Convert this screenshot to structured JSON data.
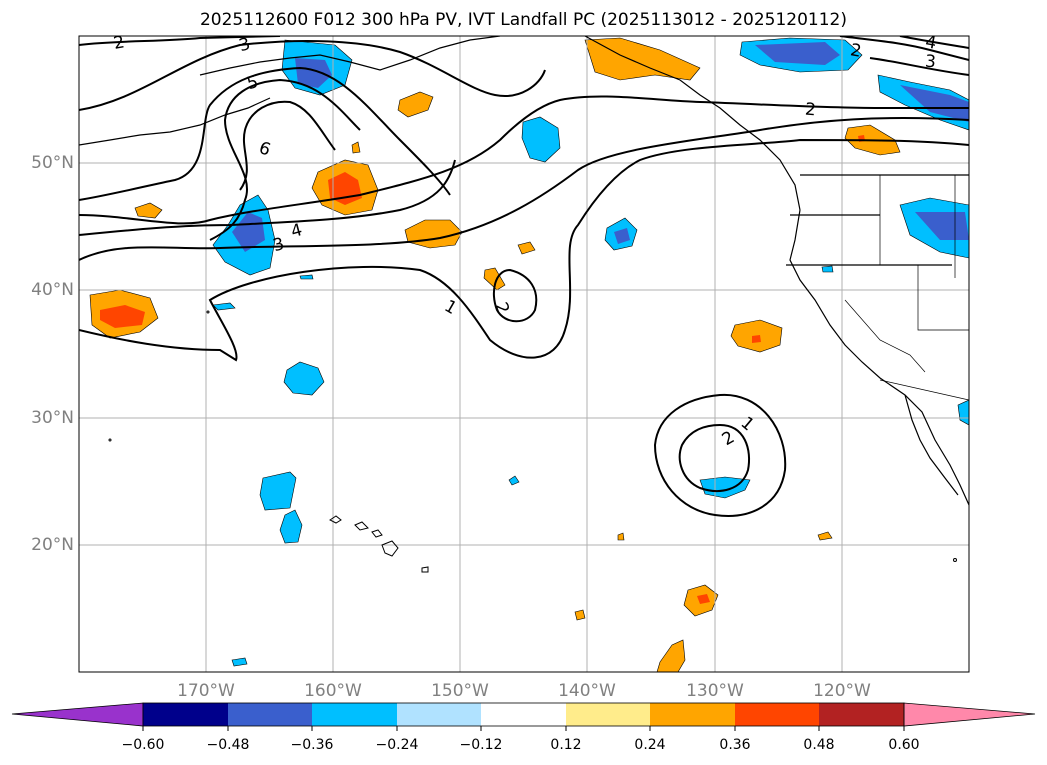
{
  "title": "2025112600 F012 300 hPa PV, IVT Landfall PC (2025113012 - 2025120112)",
  "map": {
    "lat_range": [
      10,
      60
    ],
    "lon_range": [
      -180,
      -110
    ],
    "lat_labels": [
      "50°N",
      "40°N",
      "30°N",
      "20°N"
    ],
    "lon_labels": [
      "170°W",
      "160°W",
      "150°W",
      "140°W",
      "130°W",
      "120°W"
    ]
  },
  "contour_labels": {
    "values": [
      "2",
      "3",
      "5",
      "6",
      "4",
      "3",
      "1",
      "2",
      "1",
      "2",
      "2",
      "2",
      "4",
      "3"
    ]
  },
  "colorbar": {
    "labels": [
      "−0.60",
      "−0.48",
      "−0.36",
      "−0.24",
      "−0.12",
      "0.12",
      "0.24",
      "0.36",
      "0.48",
      "0.60"
    ],
    "colors": [
      "#9932cc",
      "#00008b",
      "#3a5fcd",
      "#00bfff",
      "#b0e2ff",
      "#ffffff",
      "#ffec8b",
      "#ffa500",
      "#ff4500",
      "#b22222",
      "#ff88aa"
    ]
  },
  "colors": {
    "blue_fill": "#00bfff",
    "blue_dark": "#3a5fcd",
    "navy": "#00008b",
    "orange": "#ffa500",
    "red_orange": "#ff4500",
    "grid": "#b0b0b0"
  }
}
